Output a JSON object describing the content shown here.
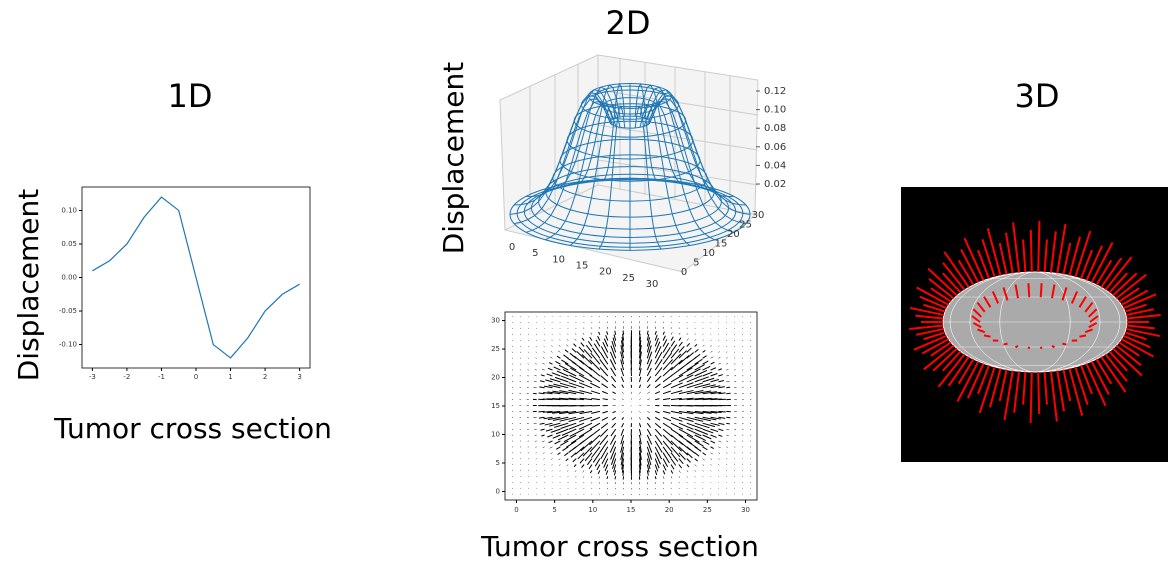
{
  "slide": {
    "titles": [
      "1D",
      "2D",
      "3D"
    ],
    "y_axis_labels": [
      "Displacement",
      "Displacement"
    ],
    "x_axis_labels": [
      "Tumor cross section",
      "Tumor cross section"
    ]
  },
  "chart_data": [
    {
      "type": "line",
      "color": "#1f77b4",
      "x": [
        -3,
        -2.5,
        -2,
        -1.5,
        -1,
        -0.5,
        0,
        0.5,
        1,
        1.5,
        2,
        2.5,
        3
      ],
      "values": [
        0.01,
        0.025,
        0.05,
        0.09,
        0.12,
        0.1,
        0.0,
        -0.1,
        -0.12,
        -0.09,
        -0.05,
        -0.025,
        -0.01
      ],
      "xlim": [
        -3.3,
        3.3
      ],
      "xticks": [
        -3,
        -2,
        -1,
        0,
        1,
        2,
        3
      ],
      "ylim": [
        -0.135,
        0.135
      ],
      "yticks": [
        {
          "value": -0.1,
          "label": "-0.10"
        },
        {
          "value": -0.05,
          "label": "-0.05"
        },
        {
          "value": 0,
          "label": "0.00"
        },
        {
          "value": 0.05,
          "label": "0.05"
        },
        {
          "value": 0.1,
          "label": "0.10"
        }
      ]
    },
    {
      "type": "surface3d",
      "color": "#1f77b4",
      "xticks": [
        0,
        5,
        10,
        15,
        20,
        25,
        30
      ],
      "yticks": [
        0,
        5,
        10,
        15,
        20,
        25,
        30
      ],
      "zticks": [
        {
          "value": 0.02,
          "label": "0.02"
        },
        {
          "value": 0.04,
          "label": "0.04"
        },
        {
          "value": 0.06,
          "label": "0.06"
        },
        {
          "value": 0.08,
          "label": "0.08"
        },
        {
          "value": 0.1,
          "label": "0.10"
        },
        {
          "value": 0.12,
          "label": "0.12"
        }
      ]
    },
    {
      "type": "quiver",
      "color": "#000000",
      "xlim": [
        -1.5,
        31.5
      ],
      "ylim": [
        -1.5,
        31.5
      ],
      "xticks": [
        0,
        5,
        10,
        15,
        20,
        25,
        30
      ],
      "yticks": [
        0,
        5,
        10,
        15,
        20,
        25,
        30
      ]
    }
  ]
}
